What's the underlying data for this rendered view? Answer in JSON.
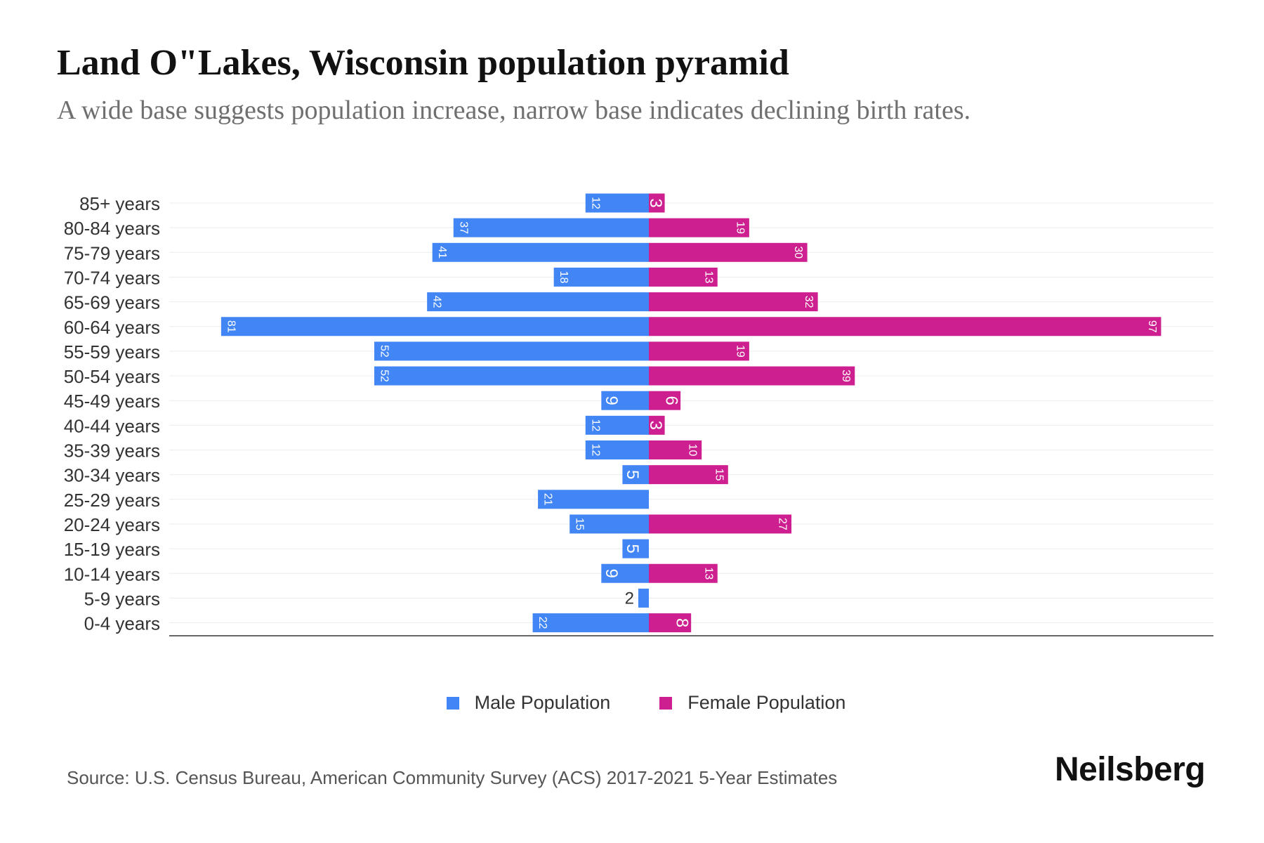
{
  "title": "Land O\"Lakes, Wisconsin population pyramid",
  "subtitle": "A wide base suggests population increase, narrow base indicates declining birth rates.",
  "source": "Source: U.S. Census Bureau, American Community Survey (ACS) 2017-2021 5-Year Estimates",
  "brand": "Neilsberg",
  "colors": {
    "male": "#4285f4",
    "female": "#cd1f8f"
  },
  "chart_data": {
    "type": "bar",
    "orientation": "horizontal-diverging",
    "title": "Land O\"Lakes, Wisconsin population pyramid",
    "categories": [
      "85+ years",
      "80-84 years",
      "75-79 years",
      "70-74 years",
      "65-69 years",
      "60-64 years",
      "55-59 years",
      "50-54 years",
      "45-49 years",
      "40-44 years",
      "35-39 years",
      "30-34 years",
      "25-29 years",
      "20-24 years",
      "15-19 years",
      "10-14 years",
      "5-9 years",
      "0-4 years"
    ],
    "series": [
      {
        "name": "Male Population",
        "values": [
          12,
          37,
          41,
          18,
          42,
          81,
          52,
          52,
          9,
          12,
          12,
          5,
          21,
          15,
          5,
          9,
          2,
          22
        ]
      },
      {
        "name": "Female Population",
        "values": [
          3,
          19,
          30,
          13,
          32,
          97,
          19,
          39,
          6,
          3,
          10,
          15,
          0,
          27,
          0,
          13,
          0,
          8
        ]
      }
    ],
    "xlim": [
      -97,
      97
    ],
    "grid": true,
    "legend": "bottom-center"
  }
}
